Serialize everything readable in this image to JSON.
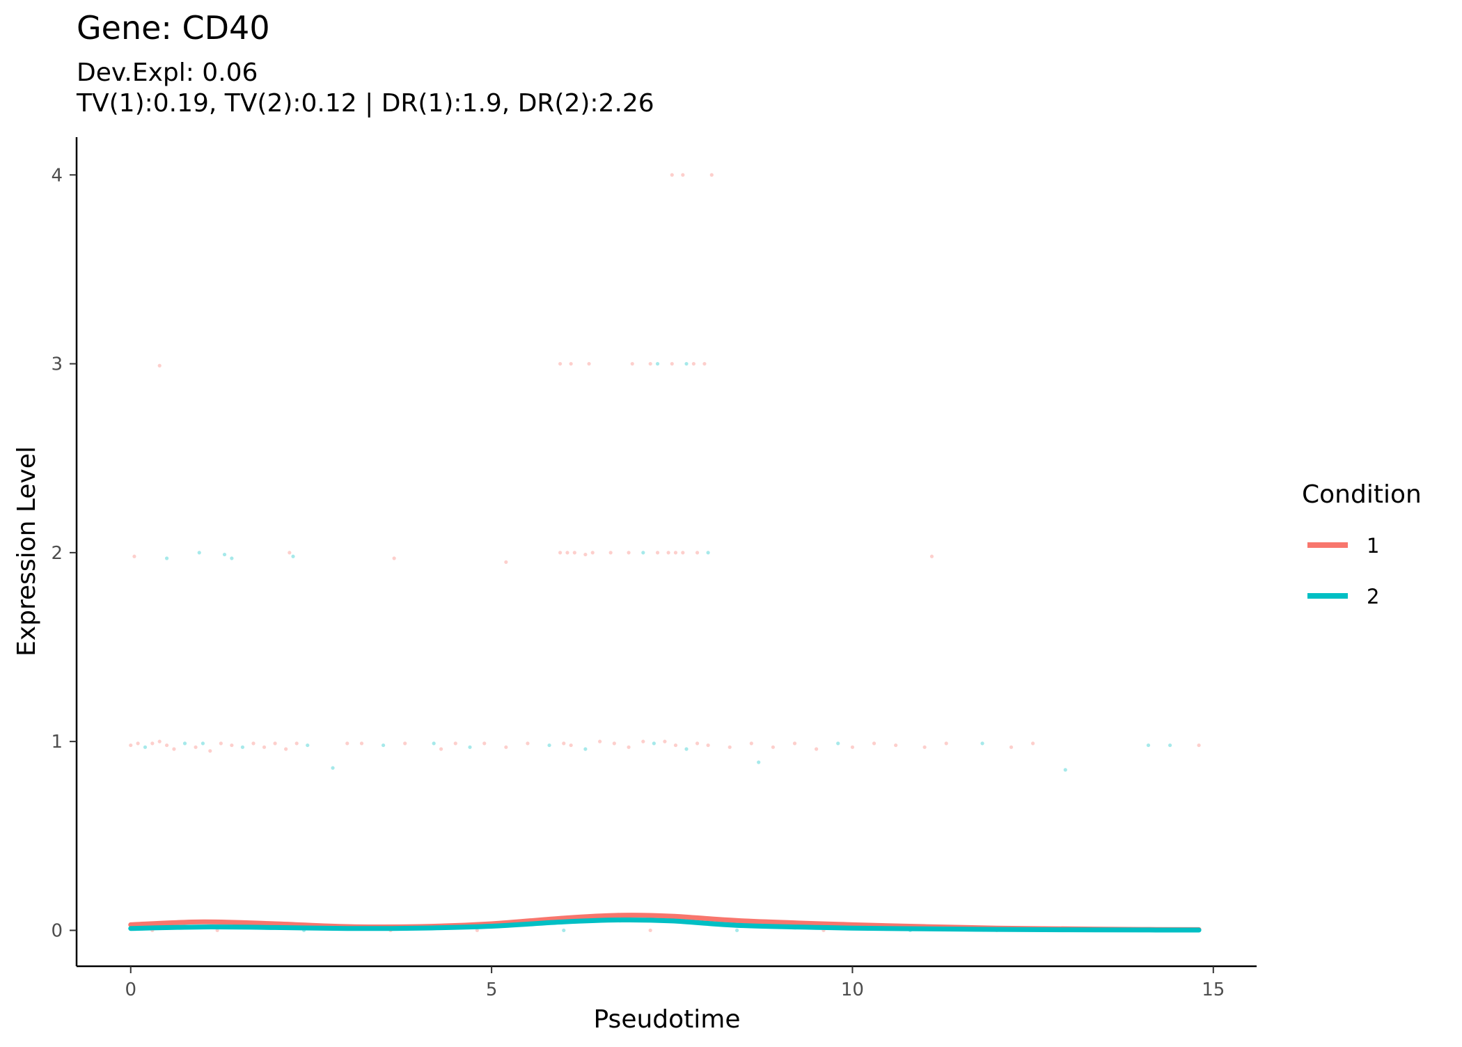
{
  "chart_data": {
    "type": "scatter",
    "title": "Gene: CD40",
    "subtitle_lines": [
      "Dev.Expl: 0.06",
      "TV(1):0.19, TV(2):0.12 | DR(1):1.9, DR(2):2.26"
    ],
    "xlabel": "Pseudotime",
    "ylabel": "Expression Level",
    "xlim": [
      -0.75,
      15.6
    ],
    "ylim": [
      -0.19,
      4.2
    ],
    "x_ticks": [
      0,
      5,
      10,
      15
    ],
    "y_ticks": [
      0,
      1,
      2,
      3,
      4
    ],
    "grid": false,
    "legend": {
      "title": "Condition",
      "placement": "right",
      "entries": [
        {
          "label": "1",
          "color": "#F8766D"
        },
        {
          "label": "2",
          "color": "#00BFC4"
        }
      ]
    },
    "series": [
      {
        "name": "1",
        "color": "#F8766D",
        "kind": "smooth",
        "points": [
          [
            0,
            0.03
          ],
          [
            1,
            0.045
          ],
          [
            2,
            0.035
          ],
          [
            3,
            0.02
          ],
          [
            4,
            0.02
          ],
          [
            5,
            0.035
          ],
          [
            6,
            0.065
          ],
          [
            6.8,
            0.08
          ],
          [
            7.5,
            0.075
          ],
          [
            8.5,
            0.05
          ],
          [
            10,
            0.03
          ],
          [
            11,
            0.02
          ],
          [
            12,
            0.012
          ],
          [
            13,
            0.008
          ],
          [
            14,
            0.005
          ],
          [
            14.8,
            0.004
          ]
        ]
      },
      {
        "name": "2",
        "color": "#00BFC4",
        "kind": "smooth",
        "points": [
          [
            0,
            0.01
          ],
          [
            1,
            0.018
          ],
          [
            2,
            0.015
          ],
          [
            3,
            0.01
          ],
          [
            4,
            0.012
          ],
          [
            5,
            0.022
          ],
          [
            6,
            0.045
          ],
          [
            6.8,
            0.055
          ],
          [
            7.5,
            0.05
          ],
          [
            8.5,
            0.025
          ],
          [
            10,
            0.012
          ],
          [
            11,
            0.008
          ],
          [
            12,
            0.005
          ],
          [
            13,
            0.003
          ],
          [
            14,
            0.002
          ],
          [
            14.8,
            0.0015
          ]
        ]
      }
    ],
    "scatter_points": [
      {
        "x": 0.05,
        "y": 1.98,
        "c": "1"
      },
      {
        "x": 0.4,
        "y": 2.99,
        "c": "1"
      },
      {
        "x": 0.5,
        "y": 1.97,
        "c": "2"
      },
      {
        "x": 0.95,
        "y": 2.0,
        "c": "2"
      },
      {
        "x": 1.3,
        "y": 1.99,
        "c": "2"
      },
      {
        "x": 1.4,
        "y": 1.97,
        "c": "2"
      },
      {
        "x": 2.2,
        "y": 2.0,
        "c": "1"
      },
      {
        "x": 2.25,
        "y": 1.98,
        "c": "2"
      },
      {
        "x": 3.65,
        "y": 1.97,
        "c": "1"
      },
      {
        "x": 5.2,
        "y": 1.95,
        "c": "1"
      },
      {
        "x": 5.95,
        "y": 2.0,
        "c": "1"
      },
      {
        "x": 6.05,
        "y": 2.0,
        "c": "1"
      },
      {
        "x": 6.15,
        "y": 2.0,
        "c": "1"
      },
      {
        "x": 6.3,
        "y": 1.99,
        "c": "1"
      },
      {
        "x": 6.4,
        "y": 2.0,
        "c": "1"
      },
      {
        "x": 6.65,
        "y": 2.0,
        "c": "1"
      },
      {
        "x": 6.9,
        "y": 2.0,
        "c": "1"
      },
      {
        "x": 7.1,
        "y": 2.0,
        "c": "2"
      },
      {
        "x": 7.3,
        "y": 2.0,
        "c": "1"
      },
      {
        "x": 7.45,
        "y": 2.0,
        "c": "1"
      },
      {
        "x": 7.55,
        "y": 2.0,
        "c": "1"
      },
      {
        "x": 7.65,
        "y": 2.0,
        "c": "1"
      },
      {
        "x": 7.85,
        "y": 2.0,
        "c": "1"
      },
      {
        "x": 8.0,
        "y": 2.0,
        "c": "2"
      },
      {
        "x": 11.1,
        "y": 1.98,
        "c": "1"
      },
      {
        "x": 5.95,
        "y": 3.0,
        "c": "1"
      },
      {
        "x": 6.1,
        "y": 3.0,
        "c": "1"
      },
      {
        "x": 6.35,
        "y": 3.0,
        "c": "1"
      },
      {
        "x": 6.95,
        "y": 3.0,
        "c": "1"
      },
      {
        "x": 7.2,
        "y": 3.0,
        "c": "1"
      },
      {
        "x": 7.3,
        "y": 3.0,
        "c": "2"
      },
      {
        "x": 7.5,
        "y": 3.0,
        "c": "1"
      },
      {
        "x": 7.7,
        "y": 3.0,
        "c": "2"
      },
      {
        "x": 7.8,
        "y": 3.0,
        "c": "1"
      },
      {
        "x": 7.95,
        "y": 3.0,
        "c": "1"
      },
      {
        "x": 7.5,
        "y": 4.0,
        "c": "1"
      },
      {
        "x": 7.65,
        "y": 4.0,
        "c": "1"
      },
      {
        "x": 8.05,
        "y": 4.0,
        "c": "1"
      },
      {
        "x": 0.0,
        "y": 0.98,
        "c": "1"
      },
      {
        "x": 0.1,
        "y": 0.99,
        "c": "1"
      },
      {
        "x": 0.2,
        "y": 0.97,
        "c": "2"
      },
      {
        "x": 0.3,
        "y": 0.99,
        "c": "1"
      },
      {
        "x": 0.4,
        "y": 1.0,
        "c": "1"
      },
      {
        "x": 0.5,
        "y": 0.98,
        "c": "1"
      },
      {
        "x": 0.6,
        "y": 0.96,
        "c": "1"
      },
      {
        "x": 0.75,
        "y": 0.99,
        "c": "2"
      },
      {
        "x": 0.9,
        "y": 0.97,
        "c": "1"
      },
      {
        "x": 1.0,
        "y": 0.99,
        "c": "2"
      },
      {
        "x": 1.1,
        "y": 0.95,
        "c": "1"
      },
      {
        "x": 1.25,
        "y": 0.99,
        "c": "1"
      },
      {
        "x": 1.4,
        "y": 0.98,
        "c": "1"
      },
      {
        "x": 1.55,
        "y": 0.97,
        "c": "2"
      },
      {
        "x": 1.7,
        "y": 0.99,
        "c": "1"
      },
      {
        "x": 1.85,
        "y": 0.97,
        "c": "1"
      },
      {
        "x": 2.0,
        "y": 0.99,
        "c": "1"
      },
      {
        "x": 2.15,
        "y": 0.96,
        "c": "1"
      },
      {
        "x": 2.3,
        "y": 0.99,
        "c": "1"
      },
      {
        "x": 2.45,
        "y": 0.98,
        "c": "2"
      },
      {
        "x": 2.8,
        "y": 0.86,
        "c": "2"
      },
      {
        "x": 3.0,
        "y": 0.99,
        "c": "1"
      },
      {
        "x": 3.2,
        "y": 0.99,
        "c": "1"
      },
      {
        "x": 3.5,
        "y": 0.98,
        "c": "2"
      },
      {
        "x": 3.8,
        "y": 0.99,
        "c": "1"
      },
      {
        "x": 4.2,
        "y": 0.99,
        "c": "2"
      },
      {
        "x": 4.3,
        "y": 0.96,
        "c": "1"
      },
      {
        "x": 4.5,
        "y": 0.99,
        "c": "1"
      },
      {
        "x": 4.7,
        "y": 0.97,
        "c": "2"
      },
      {
        "x": 4.9,
        "y": 0.99,
        "c": "1"
      },
      {
        "x": 5.2,
        "y": 0.97,
        "c": "1"
      },
      {
        "x": 5.5,
        "y": 0.99,
        "c": "1"
      },
      {
        "x": 5.8,
        "y": 0.98,
        "c": "2"
      },
      {
        "x": 6.0,
        "y": 0.99,
        "c": "1"
      },
      {
        "x": 6.1,
        "y": 0.98,
        "c": "1"
      },
      {
        "x": 6.3,
        "y": 0.96,
        "c": "2"
      },
      {
        "x": 6.5,
        "y": 1.0,
        "c": "1"
      },
      {
        "x": 6.7,
        "y": 0.99,
        "c": "1"
      },
      {
        "x": 6.9,
        "y": 0.97,
        "c": "1"
      },
      {
        "x": 7.1,
        "y": 1.0,
        "c": "1"
      },
      {
        "x": 7.25,
        "y": 0.99,
        "c": "2"
      },
      {
        "x": 7.4,
        "y": 1.0,
        "c": "1"
      },
      {
        "x": 7.55,
        "y": 0.98,
        "c": "1"
      },
      {
        "x": 7.7,
        "y": 0.96,
        "c": "2"
      },
      {
        "x": 7.85,
        "y": 0.99,
        "c": "1"
      },
      {
        "x": 8.0,
        "y": 0.98,
        "c": "1"
      },
      {
        "x": 8.3,
        "y": 0.97,
        "c": "1"
      },
      {
        "x": 8.6,
        "y": 0.99,
        "c": "1"
      },
      {
        "x": 8.7,
        "y": 0.89,
        "c": "2"
      },
      {
        "x": 8.9,
        "y": 0.97,
        "c": "1"
      },
      {
        "x": 9.2,
        "y": 0.99,
        "c": "1"
      },
      {
        "x": 9.5,
        "y": 0.96,
        "c": "1"
      },
      {
        "x": 9.8,
        "y": 0.99,
        "c": "2"
      },
      {
        "x": 10.0,
        "y": 0.97,
        "c": "1"
      },
      {
        "x": 10.3,
        "y": 0.99,
        "c": "1"
      },
      {
        "x": 10.6,
        "y": 0.98,
        "c": "1"
      },
      {
        "x": 11.0,
        "y": 0.97,
        "c": "1"
      },
      {
        "x": 11.3,
        "y": 0.99,
        "c": "1"
      },
      {
        "x": 11.8,
        "y": 0.99,
        "c": "2"
      },
      {
        "x": 12.2,
        "y": 0.97,
        "c": "1"
      },
      {
        "x": 12.5,
        "y": 0.99,
        "c": "1"
      },
      {
        "x": 12.95,
        "y": 0.85,
        "c": "2"
      },
      {
        "x": 14.1,
        "y": 0.98,
        "c": "2"
      },
      {
        "x": 14.4,
        "y": 0.98,
        "c": "2"
      },
      {
        "x": 14.8,
        "y": 0.98,
        "c": "1"
      },
      {
        "x": 0.3,
        "y": 0.0,
        "c": "1"
      },
      {
        "x": 1.2,
        "y": 0.0,
        "c": "1"
      },
      {
        "x": 2.4,
        "y": 0.0,
        "c": "2"
      },
      {
        "x": 3.6,
        "y": 0.0,
        "c": "1"
      },
      {
        "x": 4.8,
        "y": 0.0,
        "c": "1"
      },
      {
        "x": 6.0,
        "y": 0.0,
        "c": "2"
      },
      {
        "x": 7.2,
        "y": 0.0,
        "c": "1"
      },
      {
        "x": 8.4,
        "y": 0.0,
        "c": "2"
      },
      {
        "x": 9.6,
        "y": 0.0,
        "c": "1"
      },
      {
        "x": 10.8,
        "y": 0.0,
        "c": "2"
      },
      {
        "x": 12.0,
        "y": 0.0,
        "c": "1"
      },
      {
        "x": 13.2,
        "y": 0.0,
        "c": "2"
      },
      {
        "x": 14.4,
        "y": 0.0,
        "c": "1"
      }
    ]
  }
}
